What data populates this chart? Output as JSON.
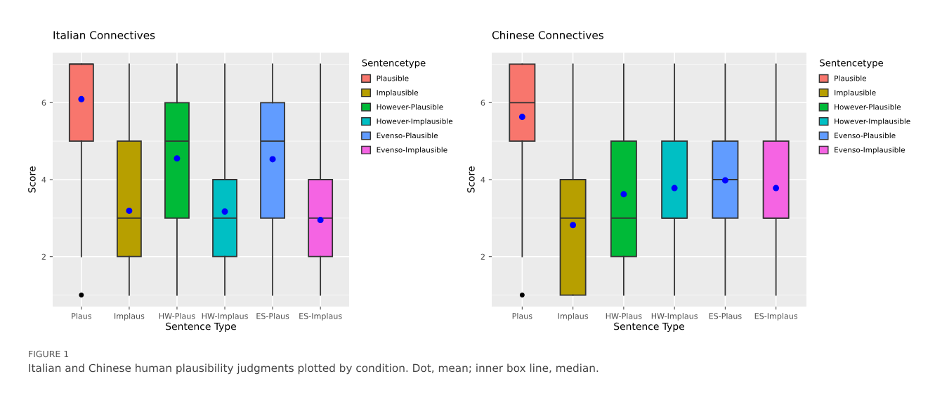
{
  "chart_data": [
    {
      "type": "box",
      "title": "Italian Connectives",
      "xlabel": "Sentence Type",
      "ylabel": "Score",
      "legend_title": "Sentencetype",
      "legend": "right",
      "grid": true,
      "categories": [
        "Plaus",
        "Implaus",
        "HW-Plaus",
        "HW-Implaus",
        "ES-Plaus",
        "ES-Implaus"
      ],
      "ylim": [
        0.7,
        7.3
      ],
      "yticks": [
        2,
        4,
        6
      ],
      "series": [
        {
          "name": "Plausible",
          "color": "#f8766d",
          "boxes": [
            {
              "low": 2,
              "q1": 5,
              "median": 7,
              "q3": 7,
              "high": 7,
              "mean": 6.09,
              "outliers": [
                1
              ]
            },
            null,
            null,
            null,
            null,
            null
          ]
        },
        {
          "name": "Implausible",
          "color": "#b79f00",
          "boxes": [
            null,
            {
              "low": 1,
              "q1": 2,
              "median": 3,
              "q3": 5,
              "high": 7,
              "mean": 3.19
            },
            null,
            null,
            null,
            null
          ]
        },
        {
          "name": "However-Plausible",
          "color": "#00ba38",
          "boxes": [
            null,
            null,
            {
              "low": 1,
              "q1": 3,
              "median": 5,
              "q3": 6,
              "high": 7,
              "mean": 4.55
            },
            null,
            null,
            null
          ]
        },
        {
          "name": "However-Implausible",
          "color": "#00bfc4",
          "boxes": [
            null,
            null,
            null,
            {
              "low": 1,
              "q1": 2,
              "median": 3,
              "q3": 4,
              "high": 7,
              "mean": 3.17
            },
            null,
            null
          ]
        },
        {
          "name": "Evenso-Plausible",
          "color": "#619cff",
          "boxes": [
            null,
            null,
            null,
            null,
            {
              "low": 1,
              "q1": 3,
              "median": 5,
              "q3": 6,
              "high": 7,
              "mean": 4.53
            },
            null
          ]
        },
        {
          "name": "Evenso-Implausible",
          "color": "#f564e3",
          "boxes": [
            null,
            null,
            null,
            null,
            null,
            {
              "low": 1,
              "q1": 2,
              "median": 3,
              "q3": 4,
              "high": 7,
              "mean": 2.95
            }
          ]
        }
      ],
      "annotations": [
        "FIGURE 1",
        "Italian and Chinese human plausibility judgments plotted by condition. Dot, mean; inner box line, median."
      ]
    },
    {
      "type": "box",
      "title": "Chinese Connectives",
      "xlabel": "Sentence Type",
      "ylabel": "Score",
      "legend_title": "Sentencetype",
      "legend": "right",
      "grid": true,
      "categories": [
        "Plaus",
        "Implaus",
        "HW-Plaus",
        "HW-Implaus",
        "ES-Plaus",
        "ES-Implaus"
      ],
      "ylim": [
        0.7,
        7.3
      ],
      "yticks": [
        2,
        4,
        6
      ],
      "series": [
        {
          "name": "Plausible",
          "color": "#f8766d",
          "boxes": [
            {
              "low": 2,
              "q1": 5,
              "median": 6,
              "q3": 7,
              "high": 7,
              "mean": 5.63,
              "outliers": [
                1
              ]
            },
            null,
            null,
            null,
            null,
            null
          ]
        },
        {
          "name": "Implausible",
          "color": "#b79f00",
          "boxes": [
            null,
            {
              "low": 1,
              "q1": 1,
              "median": 3,
              "q3": 4,
              "high": 7,
              "mean": 2.82
            },
            null,
            null,
            null,
            null
          ]
        },
        {
          "name": "However-Plausible",
          "color": "#00ba38",
          "boxes": [
            null,
            null,
            {
              "low": 1,
              "q1": 2,
              "median": 3,
              "q3": 5,
              "high": 7,
              "mean": 3.62
            },
            null,
            null,
            null
          ]
        },
        {
          "name": "However-Implausible",
          "color": "#00bfc4",
          "boxes": [
            null,
            null,
            null,
            {
              "low": 1,
              "q1": 3,
              "median": 3,
              "q3": 5,
              "high": 7,
              "mean": 3.78
            },
            null,
            null
          ]
        },
        {
          "name": "Evenso-Plausible",
          "color": "#619cff",
          "boxes": [
            null,
            null,
            null,
            null,
            {
              "low": 1,
              "q1": 3,
              "median": 4,
              "q3": 5,
              "high": 7,
              "mean": 3.98
            },
            null
          ]
        },
        {
          "name": "Evenso-Implausible",
          "color": "#f564e3",
          "boxes": [
            null,
            null,
            null,
            null,
            null,
            {
              "low": 1,
              "q1": 3,
              "median": 3,
              "q3": 5,
              "high": 7,
              "mean": 3.78
            }
          ]
        }
      ]
    }
  ]
}
